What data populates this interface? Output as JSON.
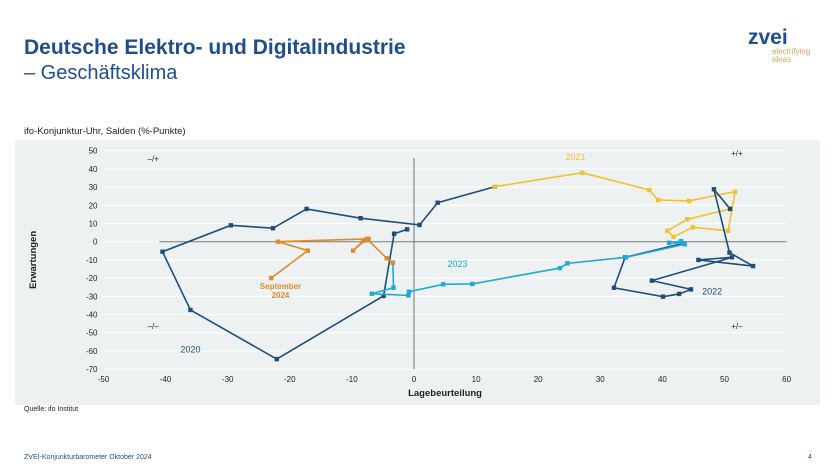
{
  "header": {
    "title": "Deutsche Elektro- und Digitalindustrie",
    "subtitle": "– Geschäftsklima"
  },
  "logo": {
    "main": "zvei",
    "tagline1": "electrifying",
    "tagline2": "ideas"
  },
  "chart_data": {
    "type": "line",
    "title": "ifo-Konjunktur-Uhr,  Salden (%-Punkte)",
    "xlabel": "Lagebeurteilung",
    "ylabel": "Erwartungen",
    "xlim": [
      -50,
      60
    ],
    "ylim": [
      -70,
      50
    ],
    "xticks": [
      -50,
      -40,
      -30,
      -20,
      -10,
      0,
      10,
      20,
      30,
      40,
      50,
      60
    ],
    "yticks": [
      50,
      40,
      30,
      20,
      10,
      0,
      -10,
      -20,
      -30,
      -40,
      -50,
      -60,
      -70
    ],
    "grid": "horizontal",
    "quadrant_labels": [
      "–/+",
      "+/+",
      "–/–",
      "+/–"
    ],
    "series": [
      {
        "name": "2020",
        "color": "#1f4e79",
        "points": [
          [
            -1.1,
            6.8
          ],
          [
            -3.2,
            4.4
          ],
          [
            -4.9,
            -29.8
          ],
          [
            -22.1,
            -64.5
          ],
          [
            -36,
            -37.5
          ],
          [
            -40.5,
            -5.5
          ],
          [
            -29.5,
            9
          ],
          [
            -22.7,
            7.4
          ],
          [
            -17.3,
            18
          ],
          [
            -8.6,
            12.9
          ],
          [
            0.9,
            9.2
          ],
          [
            3.8,
            21.4
          ],
          [
            13,
            30.2
          ]
        ]
      },
      {
        "name": "2021",
        "color": "#f2c12e",
        "points": [
          [
            13,
            30.2
          ],
          [
            27.1,
            37.9
          ],
          [
            37.9,
            28.4
          ],
          [
            39.3,
            22.9
          ],
          [
            44.3,
            22.4
          ],
          [
            51.7,
            27.5
          ],
          [
            50.6,
            6
          ],
          [
            44.9,
            7.9
          ],
          [
            41.8,
            2.7
          ],
          [
            40.8,
            6
          ],
          [
            44,
            12.3
          ],
          [
            50.9,
            18
          ]
        ]
      },
      {
        "name": "2022",
        "color": "#1f4e79",
        "points": [
          [
            50.9,
            18
          ],
          [
            48.3,
            28.8
          ],
          [
            50.8,
            -6
          ],
          [
            54.6,
            -13.4
          ],
          [
            45.8,
            -10
          ],
          [
            51.2,
            -8.6
          ],
          [
            38.3,
            -21.4
          ],
          [
            44.6,
            -26.2
          ],
          [
            42.7,
            -28.7
          ],
          [
            40.1,
            -30.2
          ],
          [
            32.2,
            -25.3
          ],
          [
            34,
            -8.6
          ],
          [
            43.4,
            -0.9
          ]
        ]
      },
      {
        "name": "2023",
        "color": "#1ea7d8",
        "points": [
          [
            43.4,
            -0.9
          ],
          [
            41.1,
            -0.6
          ],
          [
            43,
            0.3
          ],
          [
            43.6,
            -1.4
          ],
          [
            34.1,
            -8.6
          ],
          [
            24.7,
            -11.9
          ],
          [
            23.5,
            -14.5
          ],
          [
            9.4,
            -23.2
          ],
          [
            4.7,
            -23.4
          ],
          [
            -0.8,
            -27.5
          ],
          [
            -0.9,
            -29.5
          ],
          [
            -6.8,
            -28.6
          ],
          [
            -3.3,
            -25.3
          ],
          [
            -3.4,
            -11.5
          ]
        ]
      },
      {
        "name": "September 2024",
        "color": "#e08a2b",
        "points": [
          [
            -3.4,
            -11.5
          ],
          [
            -4.4,
            -9.1
          ],
          [
            -7.6,
            1.6
          ],
          [
            -9.8,
            -4.9
          ],
          [
            -8.2,
            0.4
          ],
          [
            -7.3,
            1.6
          ],
          [
            -21.9,
            0
          ],
          [
            -17.1,
            -4.9
          ],
          [
            -23,
            -20
          ]
        ]
      }
    ],
    "series_labels": [
      {
        "text": "2020",
        "color": "#1f4e79",
        "x": -36,
        "y": -61
      },
      {
        "text": "2021",
        "color": "#f2c12e",
        "x": 26,
        "y": 45
      },
      {
        "text": "2022",
        "color": "#1f4e79",
        "x": 48,
        "y": -29
      },
      {
        "text": "2023",
        "color": "#1ea7d8",
        "x": 7,
        "y": -14
      },
      {
        "text": "September",
        "color": "#e08a2b",
        "x": -21.5,
        "y": -26
      },
      {
        "text": "2024",
        "color": "#e08a2b",
        "x": -21.5,
        "y": -31
      }
    ]
  },
  "source": "Quelle: ifo Institut",
  "footer": {
    "left": "ZVEI-Konjunkturbarometer Oktober 2024",
    "page": "4"
  }
}
